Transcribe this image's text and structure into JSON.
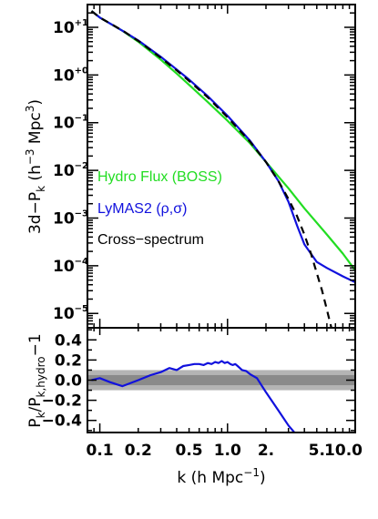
{
  "chart_data": [
    {
      "type": "line",
      "title": "",
      "xscale": "log",
      "yscale": "log",
      "xlim": [
        0.08,
        10.0
      ],
      "ylim": [
        5e-06,
        30
      ],
      "ylabel_text": "3d−P",
      "ylabel_sub": "k",
      "ylabel_units_pre": " (h",
      "ylabel_units_exp1": "−3",
      "ylabel_units_mid": " Mpc",
      "ylabel_units_exp2": "3",
      "ylabel_units_post": ")",
      "yticks": [
        {
          "value": 10,
          "base": "10",
          "exp": "+1"
        },
        {
          "value": 1,
          "base": "10",
          "exp": "+0"
        },
        {
          "value": 0.1,
          "base": "10",
          "exp": "−1"
        },
        {
          "value": 0.01,
          "base": "10",
          "exp": "−2"
        },
        {
          "value": 0.001,
          "base": "10",
          "exp": "−3"
        },
        {
          "value": 0.0001,
          "base": "10",
          "exp": "−4"
        },
        {
          "value": 1e-05,
          "base": "10",
          "exp": "−5"
        }
      ],
      "legend": [
        {
          "label": "Hydro Flux (BOSS)",
          "color": "#22dd22"
        },
        {
          "label": "LyMAS2 (ρ,σ)",
          "color": "#1111dd"
        },
        {
          "label": "Cross−spectrum",
          "color": "#000000"
        }
      ],
      "legend_placement": "lower-left",
      "series": [
        {
          "color": "#22dd22",
          "dash": "solid",
          "x": [
            0.0861,
            0.1,
            0.15,
            0.2,
            0.3,
            0.4,
            0.5,
            0.7,
            1.0,
            1.5,
            2.0,
            3.0,
            4.0,
            6.0,
            8.0,
            10.0
          ],
          "y": [
            22,
            16,
            8.5,
            5.0,
            2.1,
            1.07,
            0.62,
            0.27,
            0.11,
            0.037,
            0.015,
            0.0042,
            0.0016,
            0.00045,
            0.00018,
            8e-05
          ]
        },
        {
          "color": "#1111dd",
          "dash": "solid",
          "x": [
            0.0861,
            0.1,
            0.15,
            0.2,
            0.3,
            0.4,
            0.5,
            0.7,
            1.0,
            1.5,
            2.0,
            2.5,
            3.0,
            3.5,
            4.0,
            5.0,
            6.0,
            8.0,
            10.0
          ],
          "y": [
            22,
            16,
            8.5,
            5.3,
            2.4,
            1.3,
            0.8,
            0.36,
            0.14,
            0.042,
            0.015,
            0.006,
            0.0022,
            0.0007,
            0.00028,
            0.00012,
            9e-05,
            6e-05,
            4.5e-05
          ]
        },
        {
          "color": "#000000",
          "dash": "dashed",
          "x": [
            0.0861,
            0.1,
            0.15,
            0.2,
            0.3,
            0.4,
            0.5,
            0.7,
            1.0,
            1.5,
            2.0,
            2.5,
            3.0,
            3.5,
            4.0,
            4.5,
            5.0,
            5.5,
            6.0,
            6.5
          ],
          "y": [
            22,
            16,
            8.6,
            5.2,
            2.3,
            1.25,
            0.75,
            0.34,
            0.13,
            0.04,
            0.015,
            0.006,
            0.0025,
            0.0011,
            0.00045,
            0.00018,
            7e-05,
            3e-05,
            1.2e-05,
            5e-06
          ]
        }
      ]
    },
    {
      "type": "line",
      "title": "",
      "xscale": "log",
      "xlim": [
        0.08,
        10.0
      ],
      "ylim": [
        -0.52,
        0.52
      ],
      "xlabel_text": "k (h Mpc",
      "xlabel_exp": "−1",
      "xlabel_post": ")",
      "ylabel_text": "P",
      "ylabel_sub1": "k",
      "ylabel_mid": "/P",
      "ylabel_sub2": "k,hydro",
      "ylabel_post": "−1",
      "xticks": [
        {
          "value": 0.1,
          "label": "0.1"
        },
        {
          "value": 0.2,
          "label": "0.2"
        },
        {
          "value": 0.5,
          "label": "0.5"
        },
        {
          "value": 1.0,
          "label": "1.0"
        },
        {
          "value": 2.0,
          "label": "2."
        },
        {
          "value": 5.0,
          "label": "5."
        },
        {
          "value": 10.0,
          "label": "10.0"
        }
      ],
      "yticks": [
        {
          "value": 0.4,
          "label": "0.4"
        },
        {
          "value": 0.2,
          "label": "0.2"
        },
        {
          "value": 0.0,
          "label": "0.0"
        },
        {
          "value": -0.2,
          "label": "−0.2"
        },
        {
          "value": -0.4,
          "label": "−0.4"
        }
      ],
      "bands": [
        {
          "y0": -0.1,
          "y1": 0.1,
          "color": "#b4b4b4"
        },
        {
          "y0": -0.05,
          "y1": 0.05,
          "color": "#8a8a8a"
        }
      ],
      "series": [
        {
          "color": "#1111dd",
          "dash": "solid",
          "x": [
            0.0861,
            0.1,
            0.12,
            0.15,
            0.2,
            0.25,
            0.3,
            0.35,
            0.4,
            0.45,
            0.5,
            0.55,
            0.6,
            0.65,
            0.7,
            0.75,
            0.8,
            0.85,
            0.9,
            0.95,
            1.0,
            1.05,
            1.1,
            1.15,
            1.2,
            1.3,
            1.4,
            1.5,
            1.7,
            2.0,
            2.5,
            3.0,
            3.5
          ],
          "y": [
            0.0,
            0.02,
            -0.02,
            -0.06,
            0.0,
            0.05,
            0.08,
            0.12,
            0.1,
            0.14,
            0.15,
            0.16,
            0.16,
            0.15,
            0.17,
            0.16,
            0.18,
            0.17,
            0.19,
            0.17,
            0.18,
            0.16,
            0.15,
            0.16,
            0.14,
            0.1,
            0.09,
            0.06,
            0.02,
            -0.12,
            -0.3,
            -0.45,
            -0.55
          ]
        }
      ]
    }
  ]
}
